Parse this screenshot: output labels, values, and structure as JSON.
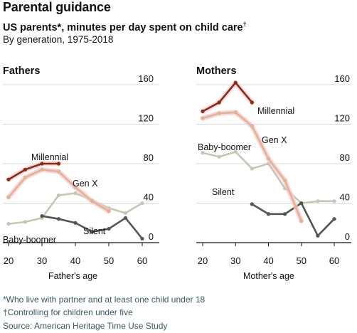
{
  "header": {
    "title": "Parental guidance",
    "subtitle": "US parents*, minutes per day spent on child care",
    "subtitle_mark": "†",
    "subnote": "By generation, 1975-2018"
  },
  "footnotes": [
    "*Who live with partner and at least one child under 18",
    "†Controlling for children under five",
    "Source: American Heritage Time Use Study"
  ],
  "colors": {
    "Millennial": "#8a2d0e",
    "Gen X": "#e1b38e",
    "Baby-boomer": "#c9c5b6",
    "Silent": "#52574f",
    "highlight": "#f7c6d2",
    "grid": "#d8d8d8",
    "axis": "#121212"
  },
  "chart_data": [
    {
      "type": "line",
      "title": "Fathers",
      "xlabel": "Father's age",
      "ylabel": "",
      "xlim": [
        17,
        63
      ],
      "ylim": [
        0,
        160
      ],
      "xticks": [
        20,
        30,
        40,
        50,
        60
      ],
      "yticks": [
        0,
        40,
        80,
        120,
        160
      ],
      "grid": true,
      "legend": "inline labels",
      "series": [
        {
          "name": "Silent",
          "x": [
            30,
            35,
            40,
            45,
            50,
            55,
            60
          ],
          "values": [
            27,
            24,
            20,
            11,
            14,
            25,
            4
          ]
        },
        {
          "name": "Baby-boomer",
          "x": [
            20,
            25,
            30,
            35,
            40,
            45,
            50,
            55,
            60
          ],
          "values": [
            19,
            21,
            25,
            48,
            50,
            43,
            35,
            30,
            40
          ]
        },
        {
          "name": "Gen X",
          "x": [
            20,
            25,
            30,
            35,
            40,
            45,
            50
          ],
          "values": [
            46,
            66,
            74,
            72,
            56,
            42,
            32
          ]
        },
        {
          "name": "Millennial",
          "x": [
            20,
            25,
            30,
            35
          ],
          "values": [
            64,
            74,
            80,
            80
          ]
        }
      ]
    },
    {
      "type": "line",
      "title": "Mothers",
      "xlabel": "Mother's age",
      "ylabel": "",
      "xlim": [
        17,
        63
      ],
      "ylim": [
        0,
        160
      ],
      "xticks": [
        20,
        30,
        40,
        50,
        60
      ],
      "yticks": [
        0,
        40,
        80,
        120,
        160
      ],
      "grid": true,
      "legend": "inline labels",
      "series": [
        {
          "name": "Silent",
          "x": [
            35,
            40,
            45,
            50,
            55,
            60
          ],
          "values": [
            39,
            29,
            29,
            40,
            7,
            24
          ]
        },
        {
          "name": "Baby-boomer",
          "x": [
            20,
            25,
            30,
            35,
            40,
            45,
            50,
            55,
            60
          ],
          "values": [
            91,
            87,
            92,
            75,
            80,
            55,
            40,
            42,
            42
          ]
        },
        {
          "name": "Gen X",
          "x": [
            20,
            25,
            30,
            35,
            40,
            45,
            50
          ],
          "values": [
            126,
            131,
            132,
            118,
            85,
            63,
            22
          ]
        },
        {
          "name": "Millennial",
          "x": [
            20,
            25,
            30,
            35
          ],
          "values": [
            133,
            142,
            162,
            142
          ]
        }
      ]
    }
  ]
}
